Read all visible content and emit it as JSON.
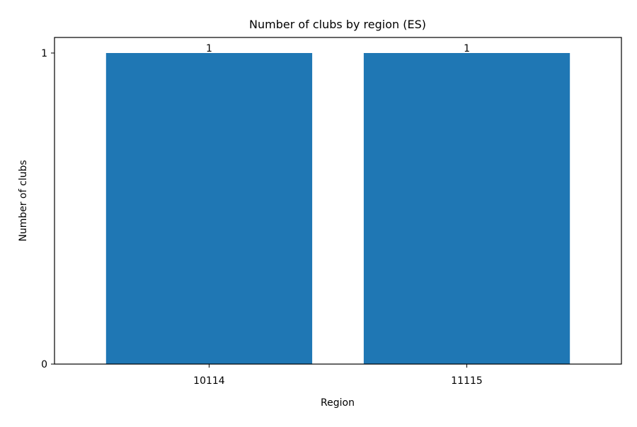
{
  "chart_data": {
    "type": "bar",
    "title": "Number of clubs by region (ES)",
    "xlabel": "Region",
    "ylabel": "Number of clubs",
    "categories": [
      "10114",
      "11115"
    ],
    "values": [
      1,
      1
    ],
    "data_labels": [
      "1",
      "1"
    ],
    "ylim": [
      0,
      1.05
    ],
    "yticks": [
      0,
      1
    ],
    "grid": false,
    "legend": "none",
    "bar_color": "#1f77b4"
  }
}
